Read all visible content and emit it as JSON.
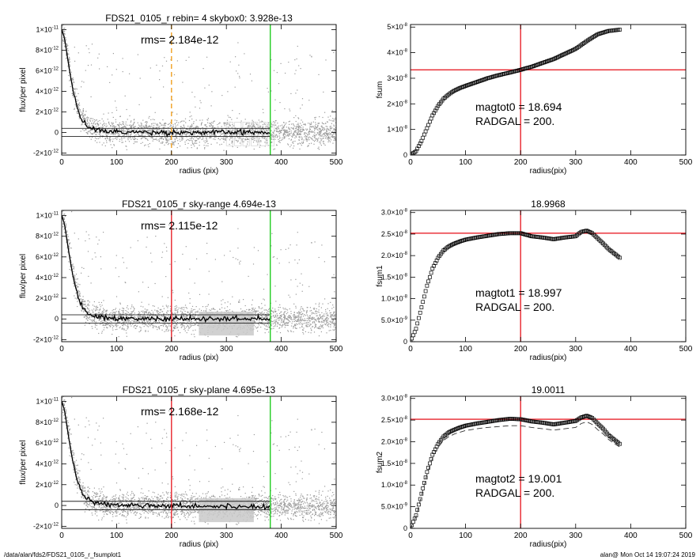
{
  "footer": {
    "left": "/data/alan/fds2/FDS21_0105_r_fsumplot1",
    "right": "alan@  Mon Oct 14 19:07:24 2019"
  },
  "colors": {
    "points": "#9a9a9a",
    "profile": "#000000",
    "red": "#e8232b",
    "green": "#22cc22",
    "orange": "#f0a020"
  },
  "chart_data": [
    {
      "type": "scatter",
      "title": "FDS21_0105_r rebin= 4    skybox0:  3.928e-13",
      "annotation": "rms= 2.184e-12",
      "xlabel": "radius (pix)",
      "ylabel": "flux/per pixel",
      "xlim": [
        0,
        500
      ],
      "ylim": [
        -2.2e-12,
        1.05e-11
      ],
      "xticks": [
        "0",
        "100",
        "200",
        "300",
        "400",
        "500"
      ],
      "ytick_values": [
        -2e-12,
        0,
        2e-12,
        4e-12,
        6e-12,
        8e-12,
        1e-11
      ],
      "ytick_labels": [
        {
          "m": "-2×10",
          "e": "-12"
        },
        {
          "m": "0",
          "e": ""
        },
        {
          "m": "2×10",
          "e": "-12"
        },
        {
          "m": "4×10",
          "e": "-12"
        },
        {
          "m": "6×10",
          "e": "-12"
        },
        {
          "m": "8×10",
          "e": "-12"
        },
        {
          "m": "1×10",
          "e": "-11"
        }
      ],
      "vlines": [
        {
          "x": 200,
          "color": "#f0a020",
          "dashed": true
        },
        {
          "x": 380,
          "color": "#22cc22",
          "dashed": false
        }
      ],
      "hlines": [
        4e-13,
        -4e-13
      ],
      "sky_boxes": true,
      "profile": {
        "x": [
          0,
          5,
          10,
          15,
          20,
          25,
          30,
          35,
          40,
          45,
          50,
          60,
          70,
          80,
          100,
          150,
          200,
          250,
          300,
          350,
          380
        ],
        "y": [
          1e-11,
          9.2e-12,
          7.5e-12,
          5.8e-12,
          4.3e-12,
          3.1e-12,
          2.2e-12,
          1.5e-12,
          1e-12,
          7e-13,
          5e-13,
          3e-13,
          2e-13,
          1e-13,
          5e-14,
          2e-14,
          0,
          0,
          0,
          0,
          0
        ]
      }
    },
    {
      "type": "line",
      "title": "",
      "annotation_lines": [
        "magtot0 =  18.694",
        "RADGAL =    200."
      ],
      "xlabel": "radius(pix)",
      "ylabel": "fsum",
      "xlim": [
        0,
        500
      ],
      "ylim": [
        0,
        5.1e-08
      ],
      "xticks": [
        "0",
        "100",
        "200",
        "300",
        "400",
        "500"
      ],
      "ytick_values": [
        0,
        1e-08,
        2e-08,
        3e-08,
        4e-08,
        5e-08
      ],
      "ytick_labels": [
        {
          "m": "0",
          "e": ""
        },
        {
          "m": "1×10",
          "e": "-8"
        },
        {
          "m": "2×10",
          "e": "-8"
        },
        {
          "m": "3×10",
          "e": "-8"
        },
        {
          "m": "4×10",
          "e": "-8"
        },
        {
          "m": "5×10",
          "e": "-8"
        }
      ],
      "vline": 200,
      "hline": 3.33e-08,
      "series": [
        {
          "x": [
            0,
            10,
            20,
            30,
            40,
            50,
            60,
            70,
            80,
            90,
            100,
            120,
            140,
            160,
            180,
            200,
            220,
            240,
            260,
            280,
            300,
            320,
            340,
            360,
            380
          ],
          "y": [
            0,
            1.5e-09,
            5.5e-09,
            1.05e-08,
            1.55e-08,
            1.92e-08,
            2.2e-08,
            2.38e-08,
            2.52e-08,
            2.62e-08,
            2.7e-08,
            2.85e-08,
            3e-08,
            3.12e-08,
            3.22e-08,
            3.33e-08,
            3.45e-08,
            3.6e-08,
            3.75e-08,
            3.95e-08,
            4.15e-08,
            4.45e-08,
            4.72e-08,
            4.85e-08,
            4.9e-08
          ]
        },
        {
          "dashed": true,
          "x": [
            280,
            300,
            320,
            340,
            360,
            380
          ],
          "y": [
            3.9e-08,
            4.1e-08,
            4.38e-08,
            4.65e-08,
            4.78e-08,
            4.83e-08
          ]
        }
      ]
    },
    {
      "type": "scatter",
      "title": "FDS21_0105_r sky-range  4.694e-13",
      "annotation": "rms= 2.115e-12",
      "xlabel": "radius (pix)",
      "ylabel": "flux/per pixel",
      "xlim": [
        0,
        500
      ],
      "ylim": [
        -2.2e-12,
        1.05e-11
      ],
      "xticks": [
        "0",
        "100",
        "200",
        "300",
        "400",
        "500"
      ],
      "ytick_values": [
        -2e-12,
        0,
        2e-12,
        4e-12,
        6e-12,
        8e-12,
        1e-11
      ],
      "ytick_labels": [
        {
          "m": "-2×10",
          "e": "-12"
        },
        {
          "m": "0",
          "e": ""
        },
        {
          "m": "2×10",
          "e": "-12"
        },
        {
          "m": "4×10",
          "e": "-12"
        },
        {
          "m": "6×10",
          "e": "-12"
        },
        {
          "m": "8×10",
          "e": "-12"
        },
        {
          "m": "1×10",
          "e": "-11"
        }
      ],
      "vlines": [
        {
          "x": 200,
          "color": "#e8232b",
          "dashed": false
        },
        {
          "x": 380,
          "color": "#22cc22",
          "dashed": false
        }
      ],
      "hlines": [
        4e-13,
        -4e-13
      ],
      "light_band": [
        250,
        350
      ],
      "profile": {
        "x": [
          0,
          5,
          10,
          15,
          20,
          25,
          30,
          35,
          40,
          45,
          50,
          60,
          70,
          80,
          100,
          150,
          200,
          250,
          300,
          350,
          380
        ],
        "y": [
          1e-11,
          9.2e-12,
          7.5e-12,
          5.8e-12,
          4.3e-12,
          3.1e-12,
          2.2e-12,
          1.5e-12,
          1e-12,
          7e-13,
          5e-13,
          3e-13,
          2e-13,
          1e-13,
          5e-14,
          2e-14,
          0,
          0,
          0,
          0,
          0
        ]
      }
    },
    {
      "type": "line",
      "title": "18.9968",
      "annotation_lines": [
        "magtot1 =  18.997",
        "RADGAL =    200."
      ],
      "xlabel": "radius(pix)",
      "ylabel": "fsum1",
      "xlim": [
        0,
        500
      ],
      "ylim": [
        0,
        3.05e-08
      ],
      "xticks": [
        "0",
        "100",
        "200",
        "300",
        "400",
        "500"
      ],
      "ytick_values": [
        0,
        5e-09,
        1e-08,
        1.5e-08,
        2e-08,
        2.5e-08,
        3e-08
      ],
      "ytick_labels": [
        {
          "m": "0",
          "e": ""
        },
        {
          "m": "5.0×10",
          "e": "-9"
        },
        {
          "m": "1.0×10",
          "e": "-8"
        },
        {
          "m": "1.5×10",
          "e": "-8"
        },
        {
          "m": "2.0×10",
          "e": "-8"
        },
        {
          "m": "2.5×10",
          "e": "-8"
        },
        {
          "m": "3.0×10",
          "e": "-8"
        }
      ],
      "vline": 200,
      "hline": 2.52e-08,
      "series": [
        {
          "x": [
            0,
            10,
            20,
            30,
            40,
            50,
            60,
            70,
            80,
            90,
            100,
            120,
            140,
            160,
            180,
            200,
            220,
            240,
            260,
            280,
            300,
            310,
            320,
            330,
            340,
            350,
            360,
            370,
            380
          ],
          "y": [
            0,
            3e-09,
            8e-09,
            1.3e-08,
            1.7e-08,
            1.95e-08,
            2.12e-08,
            2.22e-08,
            2.28e-08,
            2.33e-08,
            2.37e-08,
            2.42e-08,
            2.46e-08,
            2.5e-08,
            2.52e-08,
            2.52e-08,
            2.45e-08,
            2.42e-08,
            2.38e-08,
            2.42e-08,
            2.45e-08,
            2.55e-08,
            2.58e-08,
            2.52e-08,
            2.4e-08,
            2.28e-08,
            2.15e-08,
            2.05e-08,
            1.95e-08
          ]
        }
      ]
    },
    {
      "type": "scatter",
      "title": "FDS21_0105_r sky-plane  4.695e-13",
      "annotation": "rms= 2.168e-12",
      "xlabel": "radius (pix)",
      "ylabel": "flux/per pixel",
      "xlim": [
        0,
        500
      ],
      "ylim": [
        -2.2e-12,
        1.05e-11
      ],
      "xticks": [
        "0",
        "100",
        "200",
        "300",
        "400",
        "500"
      ],
      "ytick_values": [
        -2e-12,
        0,
        2e-12,
        4e-12,
        6e-12,
        8e-12,
        1e-11
      ],
      "ytick_labels": [
        {
          "m": "-2×10",
          "e": "-12"
        },
        {
          "m": "0",
          "e": ""
        },
        {
          "m": "2×10",
          "e": "-12"
        },
        {
          "m": "4×10",
          "e": "-12"
        },
        {
          "m": "6×10",
          "e": "-12"
        },
        {
          "m": "8×10",
          "e": "-12"
        },
        {
          "m": "1×10",
          "e": "-11"
        }
      ],
      "vlines": [
        {
          "x": 200,
          "color": "#e8232b",
          "dashed": false
        },
        {
          "x": 380,
          "color": "#22cc22",
          "dashed": false
        }
      ],
      "hlines": [
        4e-13,
        -4e-13
      ],
      "light_band": [
        250,
        350
      ],
      "profile": {
        "x": [
          0,
          5,
          10,
          15,
          20,
          25,
          30,
          35,
          40,
          45,
          50,
          60,
          70,
          80,
          100,
          150,
          200,
          250,
          300,
          350,
          380
        ],
        "y": [
          1e-11,
          9.2e-12,
          7.5e-12,
          5.8e-12,
          4.3e-12,
          3.1e-12,
          2.2e-12,
          1.5e-12,
          1e-12,
          7e-13,
          5e-13,
          3e-13,
          2e-13,
          1e-13,
          5e-14,
          2e-14,
          0,
          -5e-14,
          -1e-13,
          -1e-13,
          -1e-13
        ]
      }
    },
    {
      "type": "line",
      "title": "19.0011",
      "annotation_lines": [
        "magtot2 =  19.001",
        "RADGAL =    200."
      ],
      "xlabel": "radius(pix)",
      "ylabel": "fsum2",
      "xlim": [
        0,
        500
      ],
      "ylim": [
        0,
        3.05e-08
      ],
      "xticks": [
        "0",
        "100",
        "200",
        "300",
        "400",
        "500"
      ],
      "ytick_values": [
        0,
        5e-09,
        1e-08,
        1.5e-08,
        2e-08,
        2.5e-08,
        3e-08
      ],
      "ytick_labels": [
        {
          "m": "0",
          "e": ""
        },
        {
          "m": "5.0×10",
          "e": "-9"
        },
        {
          "m": "1.0×10",
          "e": "-8"
        },
        {
          "m": "1.5×10",
          "e": "-8"
        },
        {
          "m": "2.0×10",
          "e": "-8"
        },
        {
          "m": "2.5×10",
          "e": "-8"
        },
        {
          "m": "3.0×10",
          "e": "-8"
        }
      ],
      "vline": 200,
      "hline": 2.52e-08,
      "series": [
        {
          "x": [
            0,
            10,
            20,
            30,
            40,
            50,
            60,
            70,
            80,
            90,
            100,
            120,
            140,
            160,
            180,
            200,
            220,
            240,
            260,
            280,
            300,
            310,
            320,
            330,
            340,
            350,
            360,
            370,
            380
          ],
          "y": [
            0,
            3e-09,
            8e-09,
            1.3e-08,
            1.7e-08,
            1.95e-08,
            2.12e-08,
            2.22e-08,
            2.28e-08,
            2.33e-08,
            2.37e-08,
            2.42e-08,
            2.46e-08,
            2.5e-08,
            2.53e-08,
            2.52e-08,
            2.47e-08,
            2.44e-08,
            2.4e-08,
            2.44e-08,
            2.48e-08,
            2.56e-08,
            2.6e-08,
            2.55e-08,
            2.42e-08,
            2.3e-08,
            2.15e-08,
            2.05e-08,
            1.95e-08
          ]
        },
        {
          "dashed": true,
          "x": [
            0,
            10,
            20,
            30,
            40,
            50,
            60,
            70,
            80,
            90,
            100,
            120,
            140,
            160,
            180,
            200,
            220,
            240,
            260,
            280,
            300,
            310,
            320,
            330,
            340,
            350,
            360,
            370,
            380
          ],
          "y": [
            0,
            2.8e-09,
            7.5e-09,
            1.25e-08,
            1.62e-08,
            1.87e-08,
            2.03e-08,
            2.12e-08,
            2.18e-08,
            2.22e-08,
            2.26e-08,
            2.3e-08,
            2.33e-08,
            2.35e-08,
            2.37e-08,
            2.37e-08,
            2.33e-08,
            2.3e-08,
            2.27e-08,
            2.3e-08,
            2.33e-08,
            2.42e-08,
            2.46e-08,
            2.4e-08,
            2.28e-08,
            2.18e-08,
            2.05e-08,
            1.96e-08,
            1.88e-08
          ]
        }
      ]
    }
  ]
}
